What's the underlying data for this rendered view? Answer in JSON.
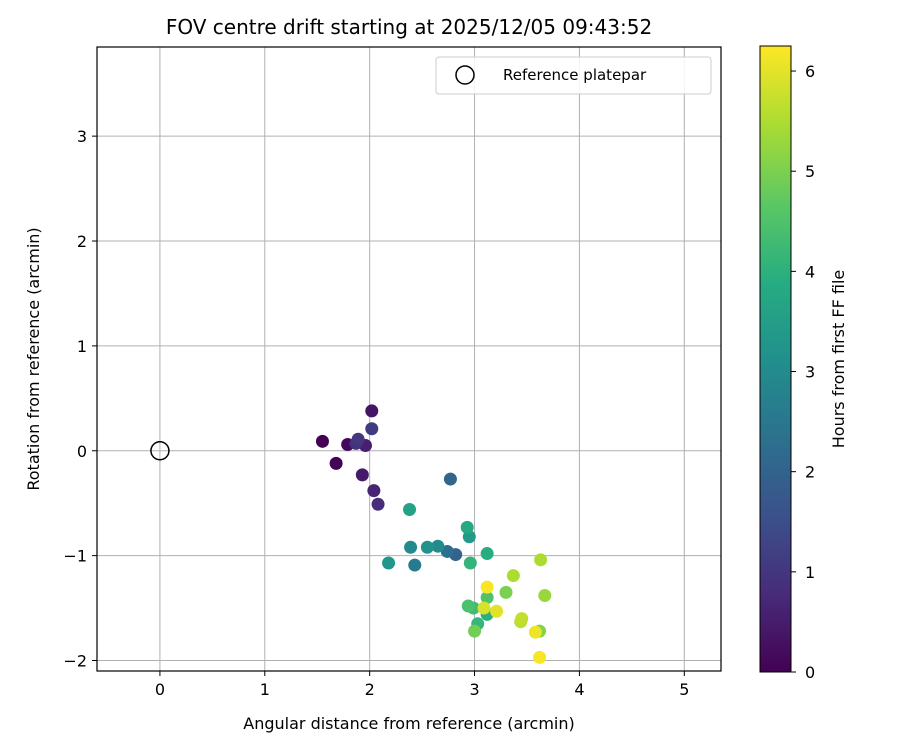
{
  "chart_data": {
    "type": "scatter",
    "title": "FOV centre drift starting at 2025/12/05 09:43:52",
    "xlabel": "Angular distance from reference (arcmin)",
    "ylabel": "Rotation from reference (arcmin)",
    "xlim": [
      -0.6,
      5.35
    ],
    "ylim": [
      -2.1,
      3.85
    ],
    "xticks": [
      0,
      1,
      2,
      3,
      4,
      5
    ],
    "yticks": [
      -2,
      -1,
      0,
      1,
      2,
      3
    ],
    "grid": true,
    "legend": {
      "location": "top-right",
      "entries": [
        "Reference platepar"
      ]
    },
    "reference_point": {
      "x": 0,
      "y": 0,
      "label": "Reference platepar"
    },
    "colorbar": {
      "label": "Hours from first FF file",
      "colormap": "viridis",
      "range": [
        0,
        6.25
      ],
      "ticks": [
        0,
        1,
        2,
        3,
        4,
        5,
        6
      ]
    },
    "points": [
      {
        "x": 1.55,
        "y": 0.09,
        "c": 0.0
      },
      {
        "x": 1.68,
        "y": -0.12,
        "c": 0.05
      },
      {
        "x": 1.79,
        "y": 0.06,
        "c": 0.15
      },
      {
        "x": 2.02,
        "y": 0.38,
        "c": 0.35
      },
      {
        "x": 1.93,
        "y": -0.23,
        "c": 0.45
      },
      {
        "x": 1.96,
        "y": 0.05,
        "c": 0.55
      },
      {
        "x": 2.04,
        "y": -0.38,
        "c": 0.65
      },
      {
        "x": 2.08,
        "y": -0.51,
        "c": 0.8
      },
      {
        "x": 1.87,
        "y": 0.07,
        "c": 0.9
      },
      {
        "x": 1.89,
        "y": 0.11,
        "c": 1.0
      },
      {
        "x": 2.02,
        "y": 0.21,
        "c": 1.1
      },
      {
        "x": 2.77,
        "y": -0.27,
        "c": 2.1
      },
      {
        "x": 2.82,
        "y": -0.99,
        "c": 2.0
      },
      {
        "x": 2.74,
        "y": -0.96,
        "c": 2.3
      },
      {
        "x": 2.43,
        "y": -1.09,
        "c": 2.6
      },
      {
        "x": 2.65,
        "y": -0.91,
        "c": 3.0
      },
      {
        "x": 2.39,
        "y": -0.92,
        "c": 3.0
      },
      {
        "x": 2.55,
        "y": -0.92,
        "c": 3.2
      },
      {
        "x": 2.18,
        "y": -1.07,
        "c": 3.3
      },
      {
        "x": 2.95,
        "y": -0.82,
        "c": 3.4
      },
      {
        "x": 2.38,
        "y": -0.56,
        "c": 3.6
      },
      {
        "x": 2.93,
        "y": -0.73,
        "c": 3.8
      },
      {
        "x": 3.12,
        "y": -0.98,
        "c": 3.9
      },
      {
        "x": 3.12,
        "y": -1.56,
        "c": 3.95
      },
      {
        "x": 2.96,
        "y": -1.07,
        "c": 4.1
      },
      {
        "x": 3.03,
        "y": -1.65,
        "c": 4.15
      },
      {
        "x": 2.99,
        "y": -1.5,
        "c": 4.3
      },
      {
        "x": 2.94,
        "y": -1.48,
        "c": 4.45
      },
      {
        "x": 3.12,
        "y": -1.4,
        "c": 4.5
      },
      {
        "x": 3.0,
        "y": -1.72,
        "c": 4.9
      },
      {
        "x": 3.3,
        "y": -1.35,
        "c": 5.0
      },
      {
        "x": 3.62,
        "y": -1.72,
        "c": 5.1
      },
      {
        "x": 3.67,
        "y": -1.38,
        "c": 5.3
      },
      {
        "x": 3.63,
        "y": -1.04,
        "c": 5.5
      },
      {
        "x": 3.37,
        "y": -1.19,
        "c": 5.5
      },
      {
        "x": 3.44,
        "y": -1.63,
        "c": 5.6
      },
      {
        "x": 3.45,
        "y": -1.6,
        "c": 5.7
      },
      {
        "x": 3.09,
        "y": -1.5,
        "c": 5.9
      },
      {
        "x": 3.21,
        "y": -1.53,
        "c": 6.0
      },
      {
        "x": 3.58,
        "y": -1.73,
        "c": 6.1
      },
      {
        "x": 3.12,
        "y": -1.3,
        "c": 6.2
      },
      {
        "x": 3.62,
        "y": -1.97,
        "c": 6.2
      }
    ]
  }
}
